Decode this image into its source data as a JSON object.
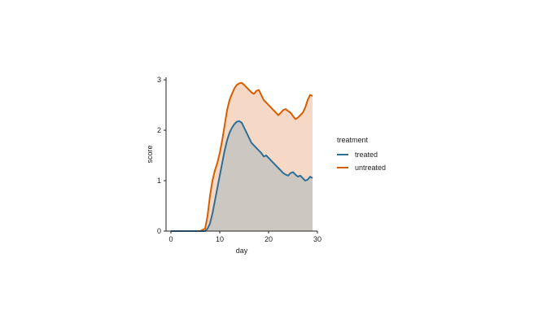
{
  "chart_data": {
    "type": "area",
    "xlabel": "day",
    "ylabel": "score",
    "xlim": [
      -1,
      30
    ],
    "ylim": [
      0,
      3.05
    ],
    "x_ticks": [
      0,
      10,
      20,
      30
    ],
    "y_ticks": [
      0,
      1,
      2,
      3
    ],
    "grid": false,
    "legend": {
      "title": "treatment",
      "position": "right"
    },
    "series": [
      {
        "name": "untreated",
        "color": "#d55e00",
        "fill": "#f4d7c3",
        "x": [
          0,
          1,
          2,
          3,
          4,
          5,
          6,
          7,
          7.5,
          8,
          8.5,
          9,
          9.5,
          10,
          10.5,
          11,
          11.5,
          12,
          12.5,
          13,
          13.5,
          14,
          14.5,
          15,
          15.5,
          16,
          16.5,
          17,
          17.5,
          18,
          18.5,
          19,
          19.5,
          20,
          20.5,
          21,
          21.5,
          22,
          22.5,
          23,
          23.5,
          24,
          24.5,
          25,
          25.5,
          26,
          26.5,
          27,
          27.5,
          28,
          28.5,
          29
        ],
        "y": [
          0,
          0,
          0,
          0,
          0,
          0,
          0,
          0.05,
          0.3,
          0.7,
          1.0,
          1.2,
          1.35,
          1.55,
          1.8,
          2.1,
          2.4,
          2.6,
          2.72,
          2.83,
          2.9,
          2.93,
          2.94,
          2.9,
          2.85,
          2.8,
          2.75,
          2.72,
          2.78,
          2.8,
          2.7,
          2.6,
          2.55,
          2.5,
          2.45,
          2.4,
          2.35,
          2.3,
          2.35,
          2.4,
          2.42,
          2.38,
          2.35,
          2.28,
          2.22,
          2.25,
          2.3,
          2.35,
          2.45,
          2.6,
          2.7,
          2.68
        ]
      },
      {
        "name": "treated",
        "color": "#2f6f97",
        "fill": "#c9c6c0",
        "x": [
          0,
          1,
          2,
          3,
          4,
          5,
          6,
          7,
          7.5,
          8,
          8.5,
          9,
          9.5,
          10,
          10.5,
          11,
          11.5,
          12,
          12.5,
          13,
          13.5,
          14,
          14.5,
          15,
          15.5,
          16,
          16.5,
          17,
          17.5,
          18,
          18.5,
          19,
          19.5,
          20,
          20.5,
          21,
          21.5,
          22,
          22.5,
          23,
          23.5,
          24,
          24.5,
          25,
          25.5,
          26,
          26.5,
          27,
          27.5,
          28,
          28.5,
          29
        ],
        "y": [
          0,
          0,
          0,
          0,
          0,
          0,
          0,
          0,
          0.05,
          0.15,
          0.35,
          0.6,
          0.85,
          1.1,
          1.35,
          1.6,
          1.8,
          1.95,
          2.05,
          2.12,
          2.17,
          2.18,
          2.15,
          2.05,
          1.95,
          1.85,
          1.75,
          1.7,
          1.65,
          1.6,
          1.55,
          1.48,
          1.5,
          1.45,
          1.4,
          1.35,
          1.3,
          1.25,
          1.2,
          1.15,
          1.12,
          1.1,
          1.15,
          1.17,
          1.12,
          1.08,
          1.1,
          1.05,
          1.0,
          1.02,
          1.08,
          1.05
        ]
      }
    ]
  }
}
